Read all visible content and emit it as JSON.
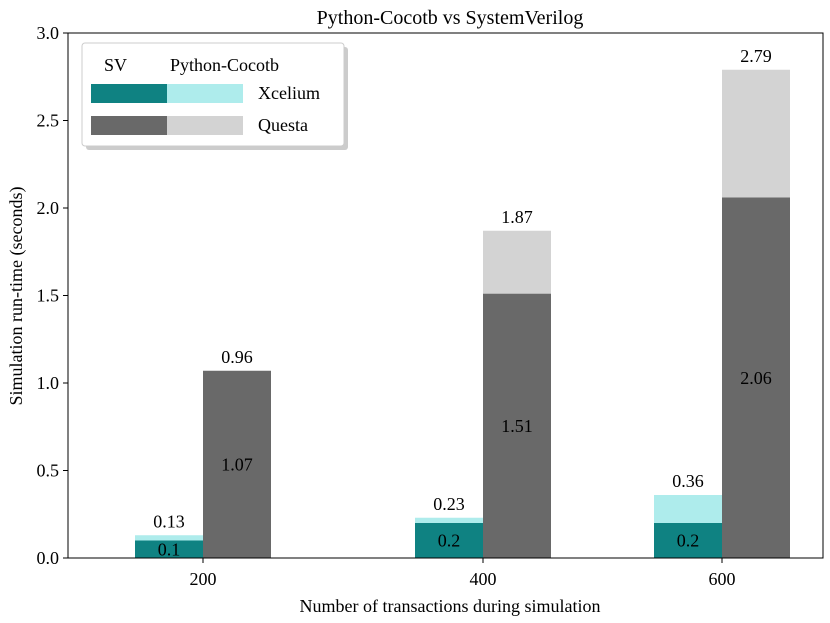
{
  "chart_data": {
    "type": "bar",
    "title": "Python-Cocotb vs SystemVerilog",
    "xlabel": "Number of transactions during simulation",
    "ylabel": "Simulation run-time (seconds)",
    "ylim": [
      0,
      3.0
    ],
    "yticks": [
      "0.0",
      "0.5",
      "1.0",
      "1.5",
      "2.0",
      "2.5",
      "3.0"
    ],
    "categories": [
      "200",
      "400",
      "600"
    ],
    "grid": false,
    "legend_position": "top-left",
    "legend": {
      "header_sv": "SV",
      "header_cocotb": "Python-Cocotb",
      "rows": [
        {
          "label": "Xcelium",
          "sv_color": "#0f8282",
          "cocotb_color": "#aeecec"
        },
        {
          "label": "Questa",
          "sv_color": "#696969",
          "cocotb_color": "#d3d3d3"
        }
      ]
    },
    "series": [
      {
        "name": "Xcelium",
        "sv_values": [
          0.1,
          0.2,
          0.2
        ],
        "cocotb_values": [
          0.13,
          0.23,
          0.36
        ],
        "sv_labels": [
          "0.1",
          "0.2",
          "0.2"
        ],
        "cocotb_labels": [
          "0.13",
          "0.23",
          "0.36"
        ],
        "sv_color": "#0f8282",
        "cocotb_color": "#aeecec"
      },
      {
        "name": "Questa",
        "sv_values": [
          1.07,
          1.51,
          2.06
        ],
        "cocotb_values": [
          0.96,
          1.87,
          2.79
        ],
        "sv_labels": [
          "1.07",
          "1.51",
          "2.06"
        ],
        "cocotb_labels": [
          "0.96",
          "1.87",
          "2.79"
        ],
        "sv_color": "#696969",
        "cocotb_color": "#d3d3d3"
      }
    ]
  }
}
